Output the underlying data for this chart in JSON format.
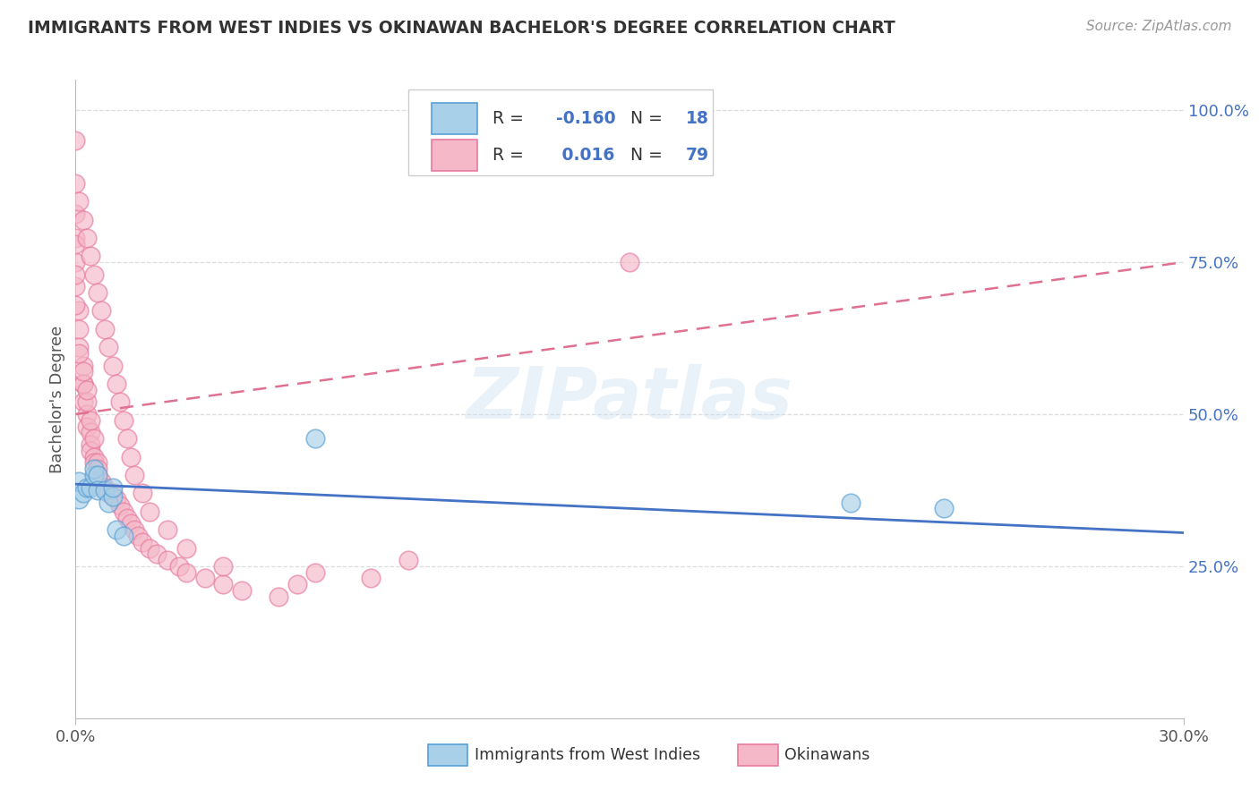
{
  "title": "IMMIGRANTS FROM WEST INDIES VS OKINAWAN BACHELOR'S DEGREE CORRELATION CHART",
  "source": "Source: ZipAtlas.com",
  "ylabel": "Bachelor's Degree",
  "xlim": [
    0.0,
    0.3
  ],
  "ylim": [
    0.0,
    1.05
  ],
  "ytick_labels": [
    "25.0%",
    "50.0%",
    "75.0%",
    "100.0%"
  ],
  "ytick_positions": [
    0.25,
    0.5,
    0.75,
    1.0
  ],
  "legend1_label": "Immigrants from West Indies",
  "legend2_label": "Okinawans",
  "R1": -0.16,
  "N1": 18,
  "R2": 0.016,
  "N2": 79,
  "blue_color": "#a8d0e8",
  "pink_color": "#f4b8c8",
  "blue_edge_color": "#5a9fd4",
  "pink_edge_color": "#e87aa0",
  "blue_line_color": "#4472c4",
  "pink_line_color": "#e07090",
  "blue_legend_color": "#a8d0e8",
  "pink_legend_color": "#f4b8c8",
  "stat_color": "#4472c4",
  "watermark": "ZIPatlas",
  "background_color": "#ffffff",
  "grid_color": "#dddddd",
  "blue_scatter_x": [
    0.001,
    0.001,
    0.002,
    0.003,
    0.004,
    0.005,
    0.005,
    0.006,
    0.006,
    0.008,
    0.009,
    0.01,
    0.01,
    0.011,
    0.013,
    0.065,
    0.21,
    0.235
  ],
  "blue_scatter_y": [
    0.36,
    0.39,
    0.37,
    0.38,
    0.38,
    0.4,
    0.41,
    0.4,
    0.375,
    0.375,
    0.355,
    0.365,
    0.38,
    0.31,
    0.3,
    0.46,
    0.355,
    0.345
  ],
  "pink_scatter_x": [
    0.0,
    0.0,
    0.0,
    0.0,
    0.0,
    0.0,
    0.001,
    0.001,
    0.001,
    0.002,
    0.002,
    0.002,
    0.003,
    0.003,
    0.004,
    0.004,
    0.004,
    0.005,
    0.005,
    0.006,
    0.006,
    0.006,
    0.007,
    0.008,
    0.009,
    0.01,
    0.011,
    0.012,
    0.013,
    0.014,
    0.015,
    0.016,
    0.017,
    0.018,
    0.02,
    0.022,
    0.025,
    0.028,
    0.03,
    0.035,
    0.04,
    0.045,
    0.055,
    0.065,
    0.08,
    0.09,
    0.002,
    0.003,
    0.004,
    0.005,
    0.001,
    0.002,
    0.003,
    0.0,
    0.0,
    0.0,
    0.001,
    0.002,
    0.003,
    0.004,
    0.005,
    0.006,
    0.007,
    0.008,
    0.009,
    0.01,
    0.011,
    0.012,
    0.013,
    0.014,
    0.015,
    0.016,
    0.018,
    0.02,
    0.025,
    0.03,
    0.04,
    0.06,
    0.15
  ],
  "pink_scatter_y": [
    0.95,
    0.88,
    0.83,
    0.79,
    0.75,
    0.71,
    0.67,
    0.64,
    0.61,
    0.58,
    0.55,
    0.52,
    0.5,
    0.48,
    0.47,
    0.45,
    0.44,
    0.43,
    0.42,
    0.42,
    0.41,
    0.4,
    0.39,
    0.38,
    0.37,
    0.37,
    0.36,
    0.35,
    0.34,
    0.33,
    0.32,
    0.31,
    0.3,
    0.29,
    0.28,
    0.27,
    0.26,
    0.25,
    0.24,
    0.23,
    0.22,
    0.21,
    0.2,
    0.24,
    0.23,
    0.26,
    0.55,
    0.52,
    0.49,
    0.46,
    0.6,
    0.57,
    0.54,
    0.68,
    0.73,
    0.78,
    0.85,
    0.82,
    0.79,
    0.76,
    0.73,
    0.7,
    0.67,
    0.64,
    0.61,
    0.58,
    0.55,
    0.52,
    0.49,
    0.46,
    0.43,
    0.4,
    0.37,
    0.34,
    0.31,
    0.28,
    0.25,
    0.22,
    0.75
  ]
}
